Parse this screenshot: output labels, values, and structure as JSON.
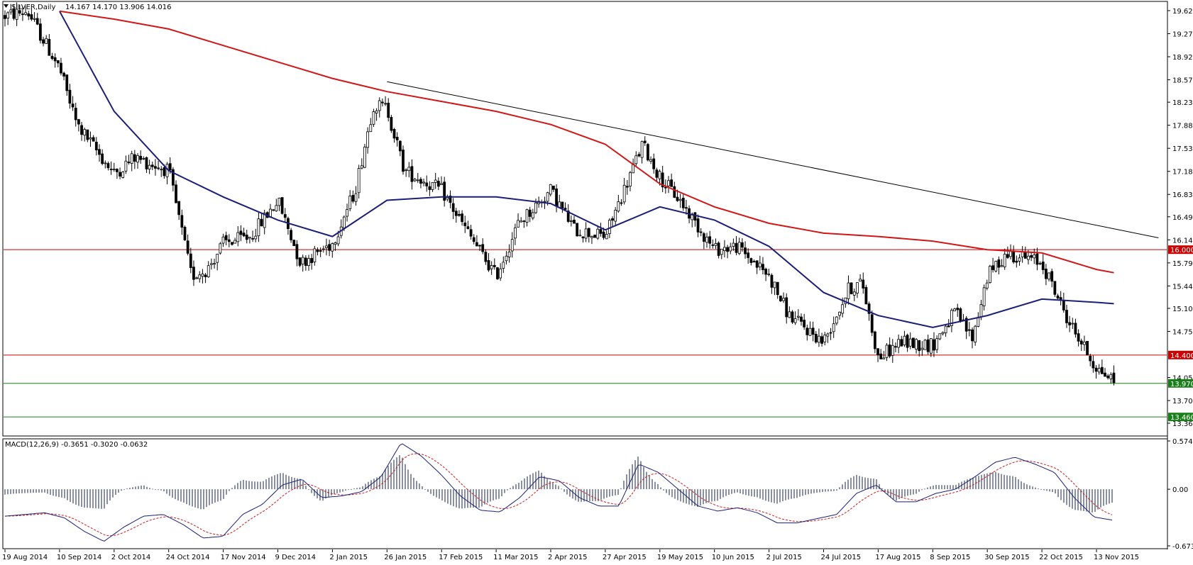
{
  "window": {
    "symbol_title": "SILVER,Daily",
    "ohlc_readout": "14.167 14.170 13.906 14.016",
    "menu_arrow_icon": "triangle-down-icon"
  },
  "macd": {
    "title": "MACD(12,26,9) -0.3651 -0.3020 -0.0632",
    "ticks": [
      "0.5741",
      "0.00",
      "-0.6732"
    ]
  },
  "colors": {
    "ma_slow": "#d01818",
    "ma_fast": "#1b1f78",
    "support_resistance_line": "#cc0000",
    "target_line": "#1a7f1a",
    "trendline": "#000000",
    "macd_main": "#1b1f78",
    "macd_signal": "#d01818",
    "macd_hist": "#8a90a0"
  },
  "chart_data": [
    {
      "type": "candlestick",
      "title": "SILVER,Daily",
      "y_ticks": [
        "19.629",
        "19.279",
        "18.929",
        "18.579",
        "18.239",
        "17.889",
        "17.539",
        "17.189",
        "16.839",
        "16.499",
        "16.149",
        "15.799",
        "15.449",
        "15.109",
        "14.759",
        "14.059",
        "13.709",
        "13.365"
      ],
      "x_ticks": [
        "19 Aug 2014",
        "10 Sep 2014",
        "2 Oct 2014",
        "24 Oct 2014",
        "17 Nov 2014",
        "9 Dec 2014",
        "2 Jan 2015",
        "26 Jan 2015",
        "17 Feb 2015",
        "11 Mar 2015",
        "2 Apr 2015",
        "27 Apr 2015",
        "19 May 2015",
        "10 Jun 2015",
        "2 Jul 2015",
        "24 Jul 2015",
        "17 Aug 2015",
        "8 Sep 2015",
        "30 Sep 2015",
        "22 Oct 2015",
        "13 Nov 2015"
      ],
      "ylim": [
        13.365,
        19.629
      ],
      "horizontal_levels": [
        {
          "value": 16.0,
          "label": "16.000",
          "color": "red"
        },
        {
          "value": 14.4,
          "label": "14.400",
          "color": "red"
        },
        {
          "value": 13.97,
          "label": "13.970",
          "color": "green"
        },
        {
          "value": 13.46,
          "label": "13.460",
          "color": "green"
        }
      ],
      "trendline": {
        "from": {
          "date": "26 Jan 2015",
          "value": 18.55
        },
        "to": {
          "date": "8 Dec 2015",
          "value": 16.18
        }
      },
      "price_path": [
        [
          "19 Aug 2014",
          19.55
        ],
        [
          "28 Aug 2014",
          19.62
        ],
        [
          "10 Sep 2014",
          18.75
        ],
        [
          "17 Sep 2014",
          17.9
        ],
        [
          "2 Oct 2014",
          17.15
        ],
        [
          "10 Oct 2014",
          17.4
        ],
        [
          "24 Oct 2014",
          17.2
        ],
        [
          "3 Nov 2014",
          15.6
        ],
        [
          "10 Nov 2014",
          15.7
        ],
        [
          "17 Nov 2014",
          16.1
        ],
        [
          "28 Nov 2014",
          16.2
        ],
        [
          "9 Dec 2014",
          16.75
        ],
        [
          "19 Dec 2014",
          15.8
        ],
        [
          "2 Jan 2015",
          16.1
        ],
        [
          "12 Jan 2015",
          16.9
        ],
        [
          "20 Jan 2015",
          18.2
        ],
        [
          "26 Jan 2015",
          18.15
        ],
        [
          "2 Feb 2015",
          17.2
        ],
        [
          "17 Feb 2015",
          16.9
        ],
        [
          "26 Feb 2015",
          16.35
        ],
        [
          "11 Mar 2015",
          15.6
        ],
        [
          "20 Mar 2015",
          16.4
        ],
        [
          "2 Apr 2015",
          16.9
        ],
        [
          "13 Apr 2015",
          16.3
        ],
        [
          "27 Apr 2015",
          16.2
        ],
        [
          "12 May 2015",
          17.6
        ],
        [
          "19 May 2015",
          17.1
        ],
        [
          "27 May 2015",
          16.75
        ],
        [
          "10 Jun 2015",
          16.0
        ],
        [
          "19 Jun 2015",
          16.05
        ],
        [
          "2 Jul 2015",
          15.6
        ],
        [
          "10 Jul 2015",
          15.0
        ],
        [
          "24 Jul 2015",
          14.6
        ],
        [
          "4 Aug 2015",
          15.4
        ],
        [
          "10 Aug 2015",
          15.5
        ],
        [
          "17 Aug 2015",
          14.35
        ],
        [
          "26 Aug 2015",
          14.6
        ],
        [
          "8 Sep 2015",
          14.55
        ],
        [
          "17 Sep 2015",
          15.05
        ],
        [
          "24 Sep 2015",
          14.65
        ],
        [
          "30 Sep 2015",
          15.6
        ],
        [
          "8 Oct 2015",
          15.95
        ],
        [
          "22 Oct 2015",
          15.8
        ],
        [
          "2 Nov 2015",
          14.9
        ],
        [
          "13 Nov 2015",
          14.2
        ],
        [
          "20 Nov 2015",
          14.016
        ]
      ],
      "series": [
        {
          "type": "line",
          "path": [
            [
              "10 Sep 2014",
              19.62
            ],
            [
              "2 Oct 2014",
              18.1
            ],
            [
              "24 Oct 2014",
              17.2
            ],
            [
              "17 Nov 2014",
              16.8
            ],
            [
              "9 Dec 2014",
              16.45
            ],
            [
              "2 Jan 2015",
              16.2
            ],
            [
              "26 Jan 2015",
              16.75
            ],
            [
              "17 Feb 2015",
              16.8
            ],
            [
              "11 Mar 2015",
              16.8
            ],
            [
              "2 Apr 2015",
              16.7
            ],
            [
              "27 Apr 2015",
              16.3
            ],
            [
              "19 May 2015",
              16.65
            ],
            [
              "10 Jun 2015",
              16.45
            ],
            [
              "2 Jul 2015",
              16.05
            ],
            [
              "24 Jul 2015",
              15.35
            ],
            [
              "17 Aug 2015",
              15.0
            ],
            [
              "8 Sep 2015",
              14.82
            ],
            [
              "30 Sep 2015",
              15.0
            ],
            [
              "22 Oct 2015",
              15.25
            ],
            [
              "13 Nov 2015",
              15.2
            ],
            [
              "20 Nov 2015",
              15.18
            ]
          ]
        },
        {
          "type": "line",
          "path": [
            [
              "10 Sep 2014",
              19.62
            ],
            [
              "2 Oct 2014",
              19.5
            ],
            [
              "24 Oct 2014",
              19.35
            ],
            [
              "17 Nov 2014",
              19.1
            ],
            [
              "9 Dec 2014",
              18.85
            ],
            [
              "2 Jan 2015",
              18.6
            ],
            [
              "26 Jan 2015",
              18.4
            ],
            [
              "17 Feb 2015",
              18.25
            ],
            [
              "11 Mar 2015",
              18.1
            ],
            [
              "2 Apr 2015",
              17.9
            ],
            [
              "27 Apr 2015",
              17.6
            ],
            [
              "19 May 2015",
              17.0
            ],
            [
              "10 Jun 2015",
              16.65
            ],
            [
              "2 Jul 2015",
              16.4
            ],
            [
              "24 Jul 2015",
              16.25
            ],
            [
              "17 Aug 2015",
              16.2
            ],
            [
              "8 Sep 2015",
              16.13
            ],
            [
              "30 Sep 2015",
              16.0
            ],
            [
              "22 Oct 2015",
              15.95
            ],
            [
              "13 Nov 2015",
              15.7
            ],
            [
              "20 Nov 2015",
              15.65
            ]
          ]
        }
      ]
    },
    {
      "type": "line",
      "title": "MACD(12,26,9) -0.3651 -0.3020 -0.0632",
      "ylim": [
        -0.6732,
        0.5741
      ],
      "y_ticks": [
        "0.5741",
        "0.00",
        "-0.6732"
      ],
      "series": [
        {
          "values": [
            -0.32,
            -0.3,
            -0.28,
            -0.34,
            -0.5,
            -0.62,
            -0.45,
            -0.32,
            -0.3,
            -0.42,
            -0.58,
            -0.56,
            -0.3,
            -0.18,
            0.05,
            0.12,
            -0.1,
            -0.08,
            -0.03,
            0.15,
            0.55,
            0.4,
            0.18,
            -0.08,
            -0.25,
            -0.27,
            -0.1,
            0.15,
            0.1,
            -0.1,
            -0.2,
            -0.2,
            0.3,
            0.2,
            0.0,
            -0.2,
            -0.26,
            -0.22,
            -0.28,
            -0.4,
            -0.4,
            -0.35,
            -0.3,
            -0.05,
            0.05,
            -0.15,
            -0.15,
            -0.05,
            0.0,
            0.15,
            0.32,
            0.38,
            0.3,
            0.2,
            -0.1,
            -0.33,
            -0.37
          ]
        }
      ]
    }
  ]
}
